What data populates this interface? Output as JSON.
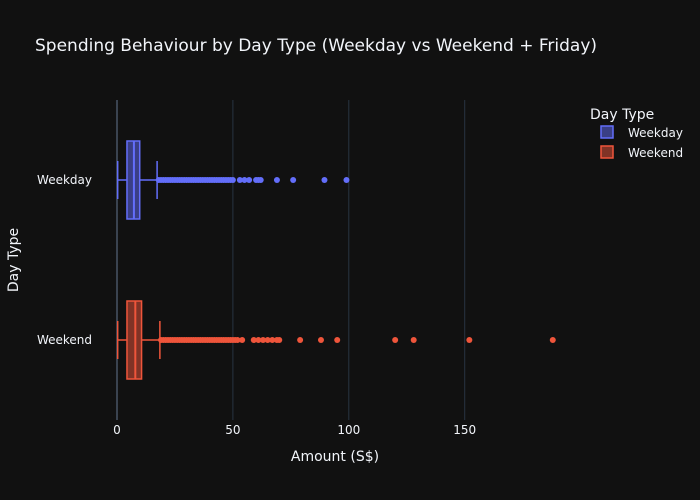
{
  "chart_data": {
    "type": "box",
    "orientation": "horizontal",
    "title": "Spending Behaviour by Day Type (Weekday vs Weekend + Friday)",
    "xlabel": "Amount (S$)",
    "ylabel": "Day Type",
    "xlim": [
      -2,
      190
    ],
    "xticks": [
      0,
      50,
      100,
      150
    ],
    "grid": true,
    "legend": {
      "title": "Day Type",
      "placement": "top-right"
    },
    "categories": [
      "Weekday",
      "Weekend"
    ],
    "series": [
      {
        "name": "Weekday",
        "color": "#636efa",
        "min": 0.3,
        "q1": 4.3,
        "median": 7.3,
        "q3": 9.8,
        "upper_fence": 17.3,
        "outliers": [
          18,
          19,
          20,
          21,
          22,
          23,
          24,
          25,
          26,
          27,
          28,
          29,
          30,
          31,
          32,
          33,
          34,
          35,
          36,
          37,
          38,
          39,
          40,
          41,
          42,
          43,
          44,
          45,
          46,
          47,
          48,
          49,
          50,
          53,
          55,
          57,
          60,
          61,
          62,
          69,
          76,
          89.5,
          99
        ]
      },
      {
        "name": "Weekend",
        "color": "#ef553b",
        "min": 0.3,
        "q1": 4.3,
        "median": 7.9,
        "q3": 10.6,
        "upper_fence": 18.5,
        "outliers": [
          19,
          20,
          21,
          22,
          23,
          24,
          25,
          26,
          27,
          28,
          29,
          30,
          31,
          32,
          33,
          34,
          35,
          36,
          37,
          38,
          39,
          40,
          41,
          42,
          43,
          44,
          45,
          46,
          47,
          48,
          49,
          50,
          51,
          52,
          54,
          59,
          61,
          63,
          65,
          67,
          69,
          70,
          79,
          88,
          95,
          120,
          128,
          152,
          188
        ]
      }
    ]
  }
}
